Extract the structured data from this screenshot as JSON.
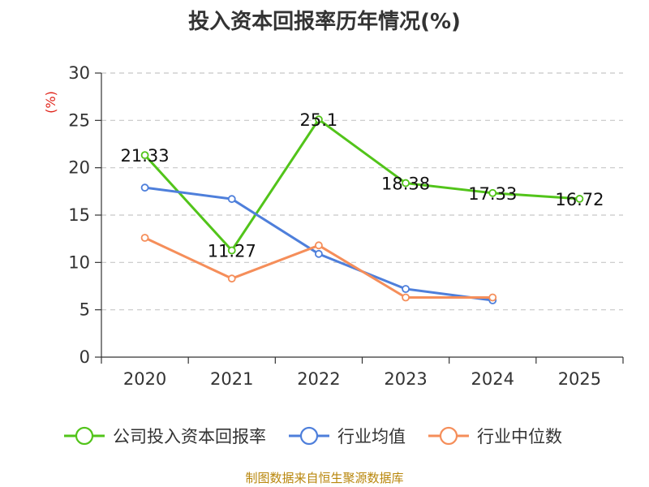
{
  "chart_data": {
    "type": "line",
    "title": "投入资本回报率历年情况(%)",
    "ylabel": "(%)",
    "xlabel": "",
    "categories": [
      "2020",
      "2021",
      "2022",
      "2023",
      "2024",
      "2025"
    ],
    "ylim": [
      0,
      30
    ],
    "yticks": [
      0,
      5,
      10,
      15,
      20,
      25,
      30
    ],
    "grid": true,
    "legend_position": "bottom",
    "series": [
      {
        "name": "公司投入资本回报率",
        "color": "#52c41a",
        "values": [
          21.33,
          11.27,
          25.1,
          18.38,
          17.33,
          16.72
        ],
        "labels": [
          "21.33",
          "11.27",
          "25.1",
          "18.38",
          "17.33",
          "16.72"
        ]
      },
      {
        "name": "行业均值",
        "color": "#4e7fdb",
        "values": [
          17.9,
          16.7,
          10.9,
          7.2,
          6.0,
          null
        ]
      },
      {
        "name": "行业中位数",
        "color": "#f58e5a",
        "values": [
          12.6,
          8.3,
          11.8,
          6.3,
          6.3,
          null
        ]
      }
    ]
  },
  "source": "制图数据来自恒生聚源数据库"
}
